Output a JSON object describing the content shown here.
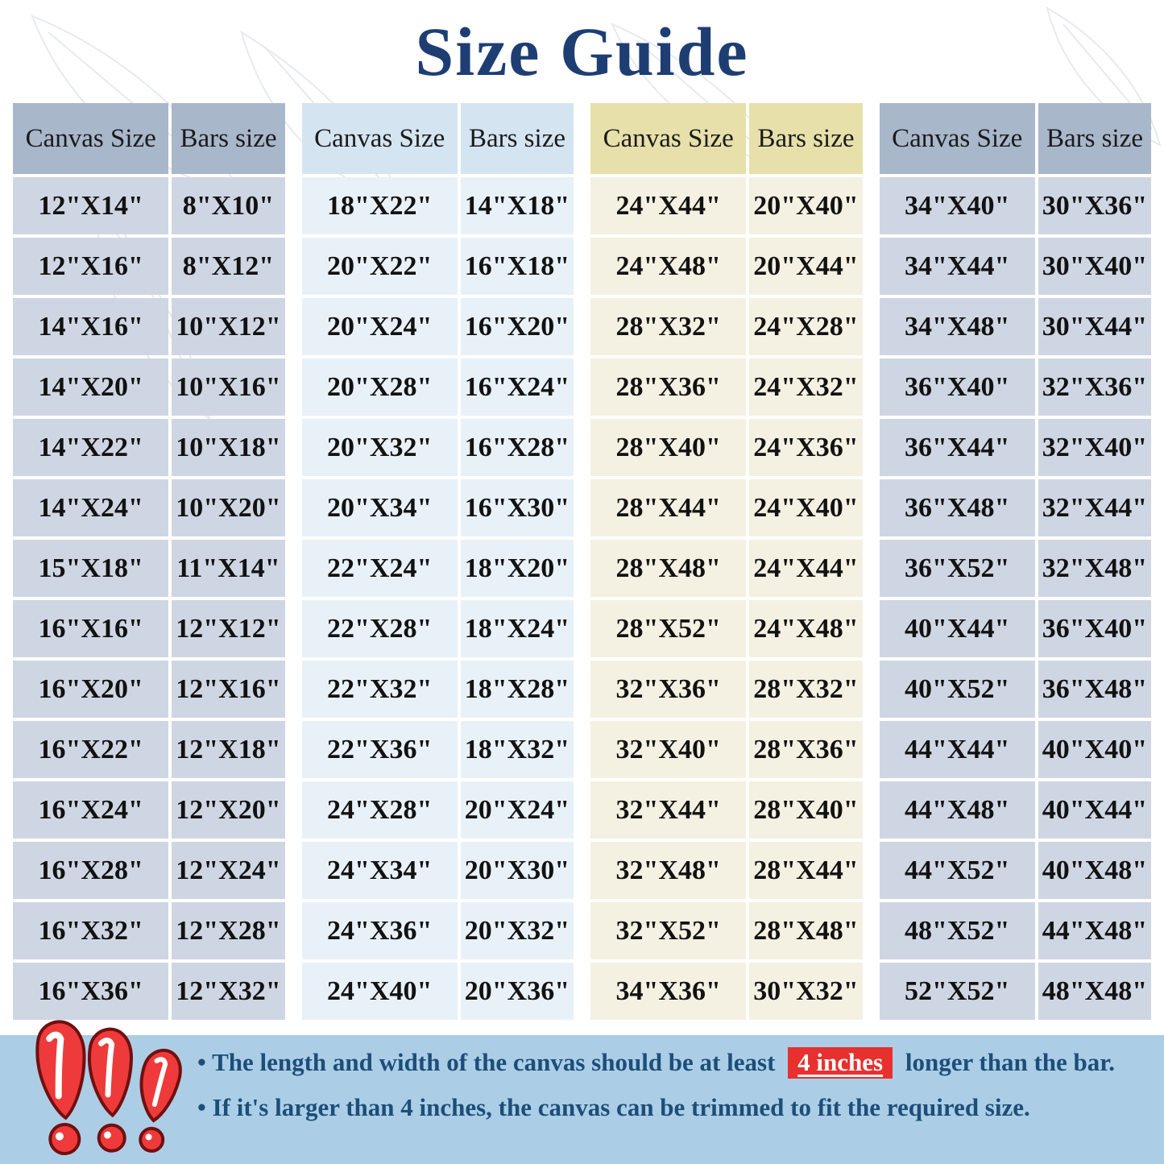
{
  "title": "Size Guide",
  "colors": {
    "title_text": "#1e3e73",
    "note_bar_bg": "#abcee6",
    "note_text": "#1d4e79",
    "highlight_bg": "#e8302e",
    "highlight_text": "#ffffff",
    "warning_red": "#ee3a3a",
    "table_1_header_bg": "#a9b7cb",
    "table_1_cell_bg": "#cfd6e3",
    "table_2_header_bg": "#d4e4f1",
    "table_2_cell_bg": "#e9f1f8",
    "table_3_header_bg": "#e7e0aa",
    "table_3_cell_bg": "#f4f1e2",
    "table_4_header_bg": "#a9b7cb",
    "table_4_cell_bg": "#cfd6e3"
  },
  "chart_data": [
    {
      "type": "table",
      "canvas_header": "Canvas Size",
      "bars_header": "Bars size",
      "rows": [
        [
          "12\"X14\"",
          "8\"X10\""
        ],
        [
          "12\"X16\"",
          "8\"X12\""
        ],
        [
          "14\"X16\"",
          "10\"X12\""
        ],
        [
          "14\"X20\"",
          "10\"X16\""
        ],
        [
          "14\"X22\"",
          "10\"X18\""
        ],
        [
          "14\"X24\"",
          "10\"X20\""
        ],
        [
          "15\"X18\"",
          "11\"X14\""
        ],
        [
          "16\"X16\"",
          "12\"X12\""
        ],
        [
          "16\"X20\"",
          "12\"X16\""
        ],
        [
          "16\"X22\"",
          "12\"X18\""
        ],
        [
          "16\"X24\"",
          "12\"X20\""
        ],
        [
          "16\"X28\"",
          "12\"X24\""
        ],
        [
          "16\"X32\"",
          "12\"X28\""
        ],
        [
          "16\"X36\"",
          "12\"X32\""
        ]
      ]
    },
    {
      "type": "table",
      "canvas_header": "Canvas Size",
      "bars_header": "Bars size",
      "rows": [
        [
          "18\"X22\"",
          "14\"X18\""
        ],
        [
          "20\"X22\"",
          "16\"X18\""
        ],
        [
          "20\"X24\"",
          "16\"X20\""
        ],
        [
          "20\"X28\"",
          "16\"X24\""
        ],
        [
          "20\"X32\"",
          "16\"X28\""
        ],
        [
          "20\"X34\"",
          "16\"X30\""
        ],
        [
          "22\"X24\"",
          "18\"X20\""
        ],
        [
          "22\"X28\"",
          "18\"X24\""
        ],
        [
          "22\"X32\"",
          "18\"X28\""
        ],
        [
          "22\"X36\"",
          "18\"X32\""
        ],
        [
          "24\"X28\"",
          "20\"X24\""
        ],
        [
          "24\"X34\"",
          "20\"X30\""
        ],
        [
          "24\"X36\"",
          "20\"X32\""
        ],
        [
          "24\"X40\"",
          "20\"X36\""
        ]
      ]
    },
    {
      "type": "table",
      "canvas_header": "Canvas Size",
      "bars_header": "Bars size",
      "rows": [
        [
          "24\"X44\"",
          "20\"X40\""
        ],
        [
          "24\"X48\"",
          "20\"X44\""
        ],
        [
          "28\"X32\"",
          "24\"X28\""
        ],
        [
          "28\"X36\"",
          "24\"X32\""
        ],
        [
          "28\"X40\"",
          "24\"X36\""
        ],
        [
          "28\"X44\"",
          "24\"X40\""
        ],
        [
          "28\"X48\"",
          "24\"X44\""
        ],
        [
          "28\"X52\"",
          "24\"X48\""
        ],
        [
          "32\"X36\"",
          "28\"X32\""
        ],
        [
          "32\"X40\"",
          "28\"X36\""
        ],
        [
          "32\"X44\"",
          "28\"X40\""
        ],
        [
          "32\"X48\"",
          "28\"X44\""
        ],
        [
          "32\"X52\"",
          "28\"X48\""
        ],
        [
          "34\"X36\"",
          "30\"X32\""
        ]
      ]
    },
    {
      "type": "table",
      "canvas_header": "Canvas Size",
      "bars_header": "Bars size",
      "rows": [
        [
          "34\"X40\"",
          "30\"X36\""
        ],
        [
          "34\"X44\"",
          "30\"X40\""
        ],
        [
          "34\"X48\"",
          "30\"X44\""
        ],
        [
          "36\"X40\"",
          "32\"X36\""
        ],
        [
          "36\"X44\"",
          "32\"X40\""
        ],
        [
          "36\"X48\"",
          "32\"X44\""
        ],
        [
          "36\"X52\"",
          "32\"X48\""
        ],
        [
          "40\"X44\"",
          "36\"X40\""
        ],
        [
          "40\"X52\"",
          "36\"X48\""
        ],
        [
          "44\"X44\"",
          "40\"X40\""
        ],
        [
          "44\"X48\"",
          "40\"X44\""
        ],
        [
          "44\"X52\"",
          "40\"X48\""
        ],
        [
          "48\"X52\"",
          "44\"X48\""
        ],
        [
          "52\"X52\"",
          "48\"X48\""
        ]
      ]
    }
  ],
  "notes": {
    "bullet": "•",
    "bullet1_before": "The length and width of the canvas should be at least",
    "bullet1_highlight": "4 inches",
    "bullet1_after": "longer than the bar.",
    "bullet2": "If it's larger than 4 inches, the canvas can be trimmed to fit the required size."
  }
}
